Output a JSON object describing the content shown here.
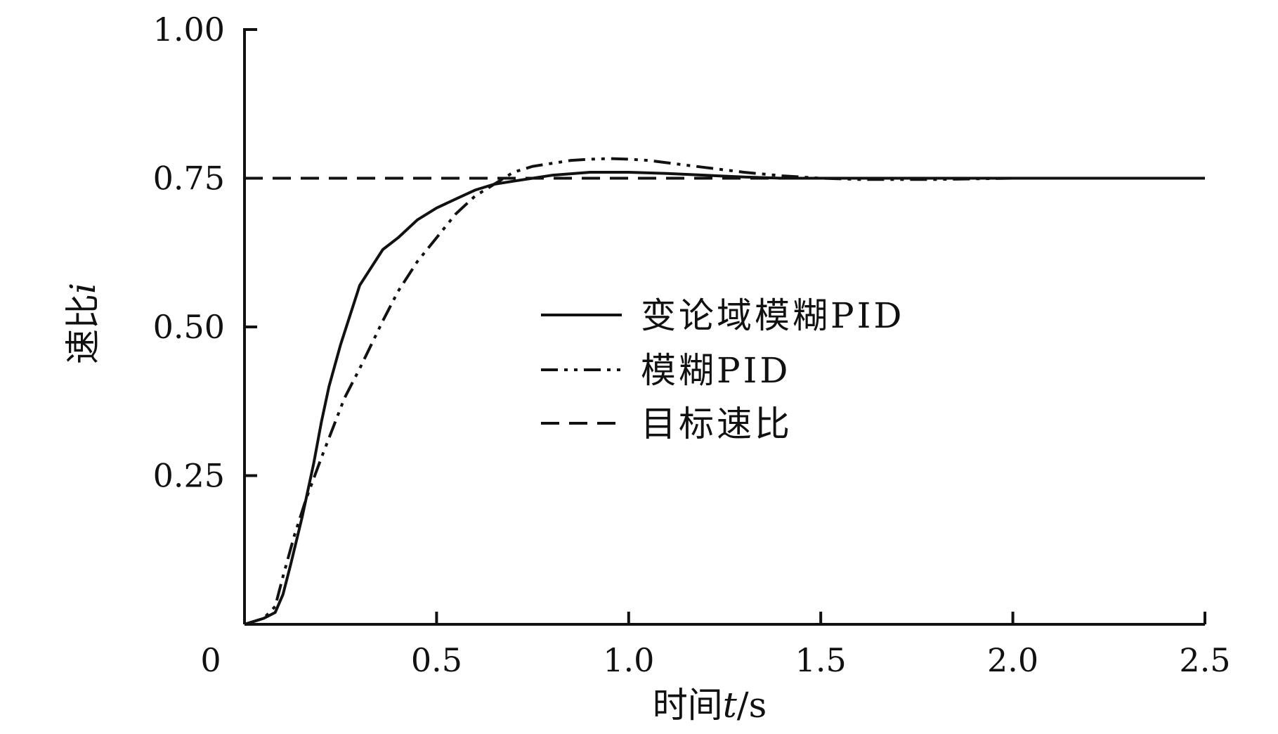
{
  "chart_data": {
    "type": "line",
    "xlabel": {
      "prefix": "时间",
      "var": "t",
      "unit": "/s"
    },
    "ylabel": {
      "prefix": "速比",
      "var": "i"
    },
    "xlim": [
      0,
      2.5
    ],
    "ylim": [
      0,
      1.0
    ],
    "x_ticks": [
      {
        "value": 0,
        "label": "0"
      },
      {
        "value": 0.5,
        "label": "0.5"
      },
      {
        "value": 1.0,
        "label": "1.0"
      },
      {
        "value": 1.5,
        "label": "1.5"
      },
      {
        "value": 2.0,
        "label": "2.0"
      },
      {
        "value": 2.5,
        "label": "2.5"
      }
    ],
    "y_ticks": [
      {
        "value": 0.25,
        "label": "0.25"
      },
      {
        "value": 0.5,
        "label": "0.50"
      },
      {
        "value": 0.75,
        "label": "0.75"
      },
      {
        "value": 1.0,
        "label": "1.00"
      }
    ],
    "grid": false,
    "legend_position": "center-right",
    "series": [
      {
        "name": "变论域模糊PID",
        "style": "solid",
        "x": [
          0,
          0.05,
          0.08,
          0.1,
          0.12,
          0.15,
          0.18,
          0.2,
          0.22,
          0.25,
          0.28,
          0.3,
          0.33,
          0.36,
          0.4,
          0.45,
          0.5,
          0.55,
          0.6,
          0.65,
          0.7,
          0.75,
          0.8,
          0.9,
          1.0,
          1.1,
          1.2,
          1.3,
          1.4,
          1.5,
          1.7,
          2.0,
          2.3,
          2.5
        ],
        "y": [
          0,
          0.01,
          0.02,
          0.05,
          0.1,
          0.18,
          0.27,
          0.34,
          0.4,
          0.47,
          0.53,
          0.57,
          0.6,
          0.63,
          0.65,
          0.68,
          0.7,
          0.715,
          0.73,
          0.74,
          0.745,
          0.75,
          0.755,
          0.76,
          0.76,
          0.758,
          0.755,
          0.752,
          0.75,
          0.75,
          0.75,
          0.75,
          0.75,
          0.75
        ]
      },
      {
        "name": "模糊PID",
        "style": "dash-dot-dot",
        "x": [
          0,
          0.05,
          0.08,
          0.1,
          0.13,
          0.16,
          0.2,
          0.23,
          0.26,
          0.3,
          0.33,
          0.36,
          0.4,
          0.45,
          0.5,
          0.55,
          0.6,
          0.65,
          0.7,
          0.75,
          0.8,
          0.85,
          0.9,
          0.95,
          1.0,
          1.05,
          1.1,
          1.2,
          1.3,
          1.4,
          1.5,
          1.6,
          1.8,
          2.0,
          2.3,
          2.5
        ],
        "y": [
          0,
          0.01,
          0.03,
          0.08,
          0.15,
          0.21,
          0.28,
          0.33,
          0.38,
          0.43,
          0.47,
          0.51,
          0.56,
          0.61,
          0.65,
          0.69,
          0.72,
          0.74,
          0.76,
          0.77,
          0.775,
          0.78,
          0.782,
          0.783,
          0.782,
          0.78,
          0.776,
          0.768,
          0.76,
          0.754,
          0.75,
          0.748,
          0.748,
          0.75,
          0.75,
          0.75
        ]
      },
      {
        "name": "目标速比",
        "style": "dashed",
        "x": [
          0,
          2.5
        ],
        "y": [
          0.75,
          0.75
        ]
      }
    ]
  }
}
